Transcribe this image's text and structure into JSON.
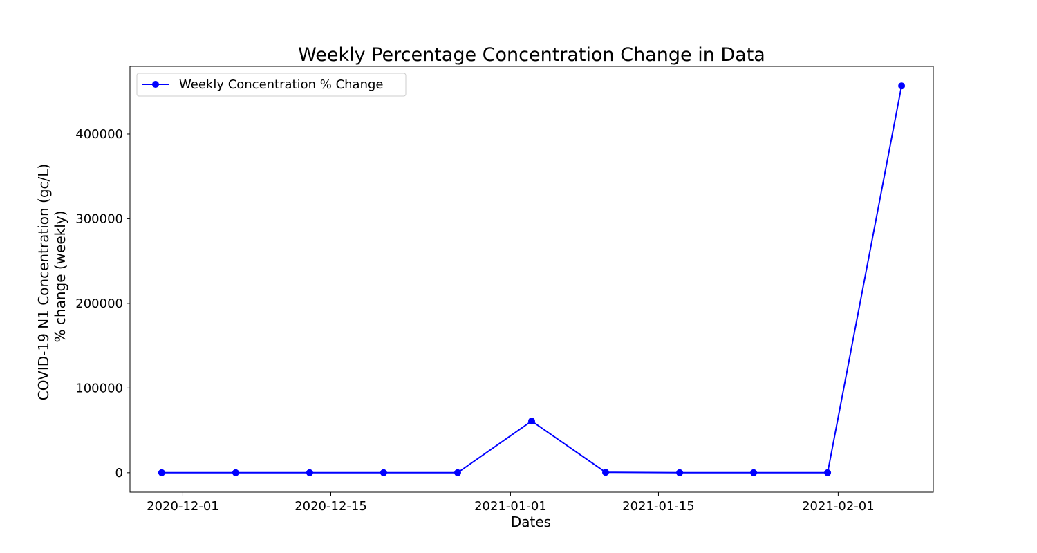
{
  "chart_data": {
    "type": "line",
    "title": "Weekly Percentage Concentration Change in Data",
    "xlabel": "Dates",
    "ylabel_lines": [
      "COVID-19 N1 Concentration (gc/L)",
      "% change (weekly)"
    ],
    "x_ticks": [
      "2020-12-01",
      "2020-12-15",
      "2021-01-01",
      "2021-01-15",
      "2021-02-01"
    ],
    "y_ticks": [
      "0",
      "100000",
      "200000",
      "300000",
      "400000"
    ],
    "ylim": [
      -23000,
      480000
    ],
    "xlim": [
      "2020-11-26",
      "2021-02-10"
    ],
    "legend": "upper-left",
    "series": [
      {
        "name": "Weekly Concentration % Change",
        "color": "#0000ff",
        "marker": "circle",
        "x": [
          "2020-11-29",
          "2020-12-06",
          "2020-12-13",
          "2020-12-20",
          "2020-12-27",
          "2021-01-03",
          "2021-01-10",
          "2021-01-17",
          "2021-01-24",
          "2021-01-31",
          "2021-02-07"
        ],
        "y": [
          0,
          0,
          0,
          0,
          0,
          61000,
          500,
          0,
          0,
          0,
          457000
        ]
      }
    ]
  }
}
